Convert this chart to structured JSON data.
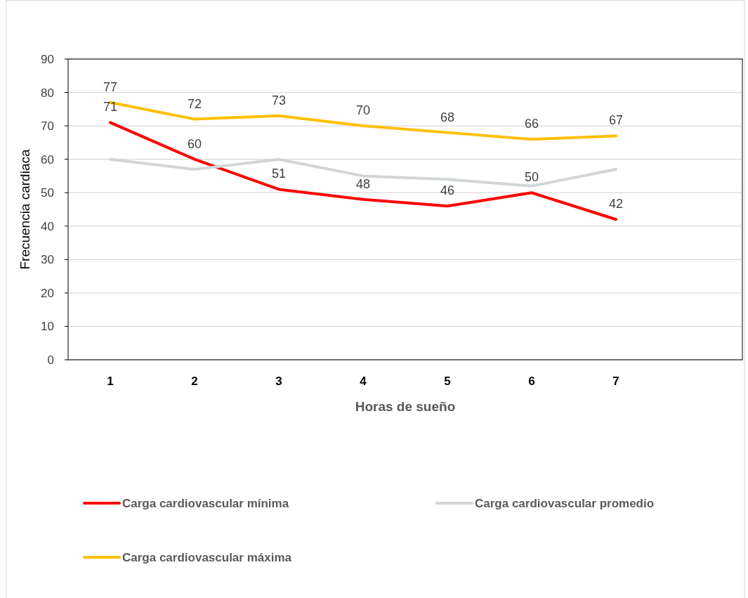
{
  "chart_data": {
    "type": "line",
    "xlabel": "Horas de sueño",
    "ylabel": "Frecuencia cardiaca",
    "categories": [
      "1",
      "2",
      "3",
      "4",
      "5",
      "6",
      "7",
      null
    ],
    "series": [
      {
        "name": "Carga cardiovascular mínima",
        "color": "#ff0000",
        "values": [
          71,
          60,
          51,
          48,
          46,
          50,
          42,
          null
        ],
        "value_labels": [
          "71",
          "60",
          "51",
          "48",
          "46",
          "50",
          "42",
          null
        ]
      },
      {
        "name": "Carga cardiovascular promedio",
        "color": "#d1d5d7",
        "values": [
          60,
          57,
          60,
          55,
          54,
          52,
          57,
          null
        ]
      },
      {
        "name": "Carga cardiovascular máxima",
        "color": "#ffc000",
        "values": [
          77,
          72,
          73,
          70,
          68,
          66,
          67,
          null
        ],
        "value_labels": [
          "77",
          "72",
          "73",
          "70",
          "68",
          "66",
          "67",
          null
        ]
      }
    ],
    "ylim": [
      0,
      90
    ],
    "yticks": [
      0,
      10,
      20,
      30,
      40,
      50,
      60,
      70,
      80,
      90
    ],
    "grid": "y",
    "legend": "bottom",
    "marker": "none",
    "line_style": "solid"
  }
}
